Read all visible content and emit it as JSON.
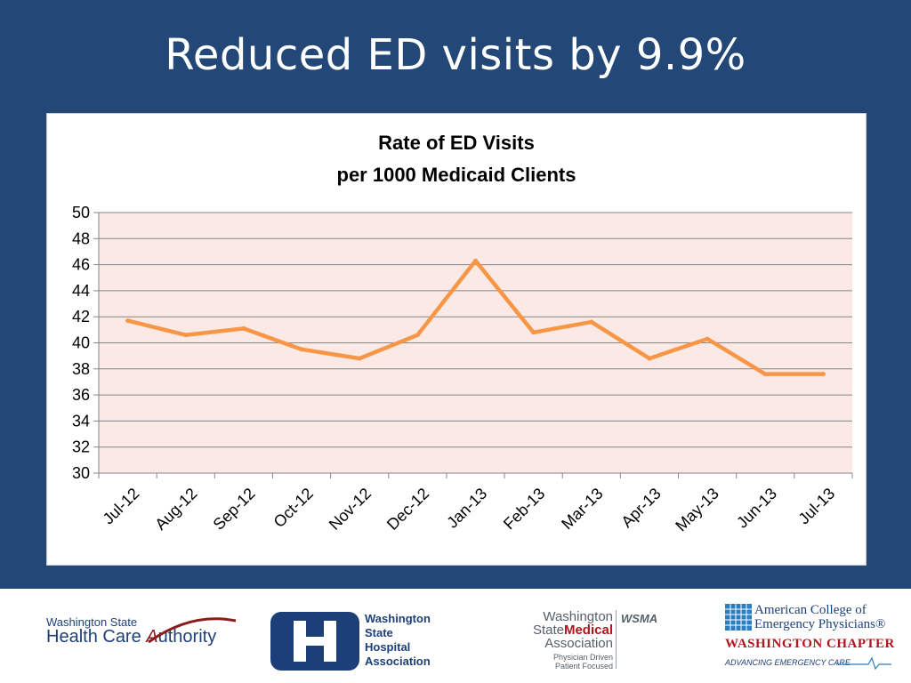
{
  "slide": {
    "title": "Reduced ED visits by 9.9%"
  },
  "colors": {
    "background": "#234878",
    "plot_area": "#fbe9e5",
    "line": "#f79646",
    "gridline": "#868686"
  },
  "chart_data": {
    "type": "line",
    "title": "Rate of ED Visits",
    "subtitle": "per 1000 Medicaid Clients",
    "xlabel": "",
    "ylabel": "",
    "categories": [
      "Jul-12",
      "Aug-12",
      "Sep-12",
      "Oct-12",
      "Nov-12",
      "Dec-12",
      "Jan-13",
      "Feb-13",
      "Mar-13",
      "Apr-13",
      "May-13",
      "Jun-13",
      "Jul-13"
    ],
    "series": [
      {
        "values": [
          41.7,
          40.6,
          41.1,
          39.5,
          38.8,
          40.6,
          46.3,
          40.8,
          41.6,
          38.8,
          40.3,
          37.6,
          37.6
        ]
      }
    ],
    "ylim": [
      30,
      50
    ],
    "yticks": [
      "30",
      "32",
      "34",
      "36",
      "38",
      "40",
      "42",
      "44",
      "46",
      "48",
      "50"
    ],
    "grid": true,
    "legend": "none"
  },
  "footer": {
    "hca": {
      "top": "Washington State",
      "main_pre": "Health Care ",
      "main_a": "A",
      "main_post": "uthority"
    },
    "wsha": {
      "line1": "Washington",
      "line2": "State",
      "line3": "Hospital",
      "line4": "Association"
    },
    "wsma": {
      "line1": "Washington",
      "line2_a": "State",
      "line2_b": "Medical",
      "line3": "Association",
      "tag1": "Physician Driven",
      "tag2": "Patient Focused",
      "abbr": "WSMA"
    },
    "acep": {
      "line1": "American College of",
      "line2": "Emergency Physicians®",
      "chapter": "WASHINGTON CHAPTER",
      "tagline": "ADVANCING EMERGENCY CARE"
    }
  }
}
